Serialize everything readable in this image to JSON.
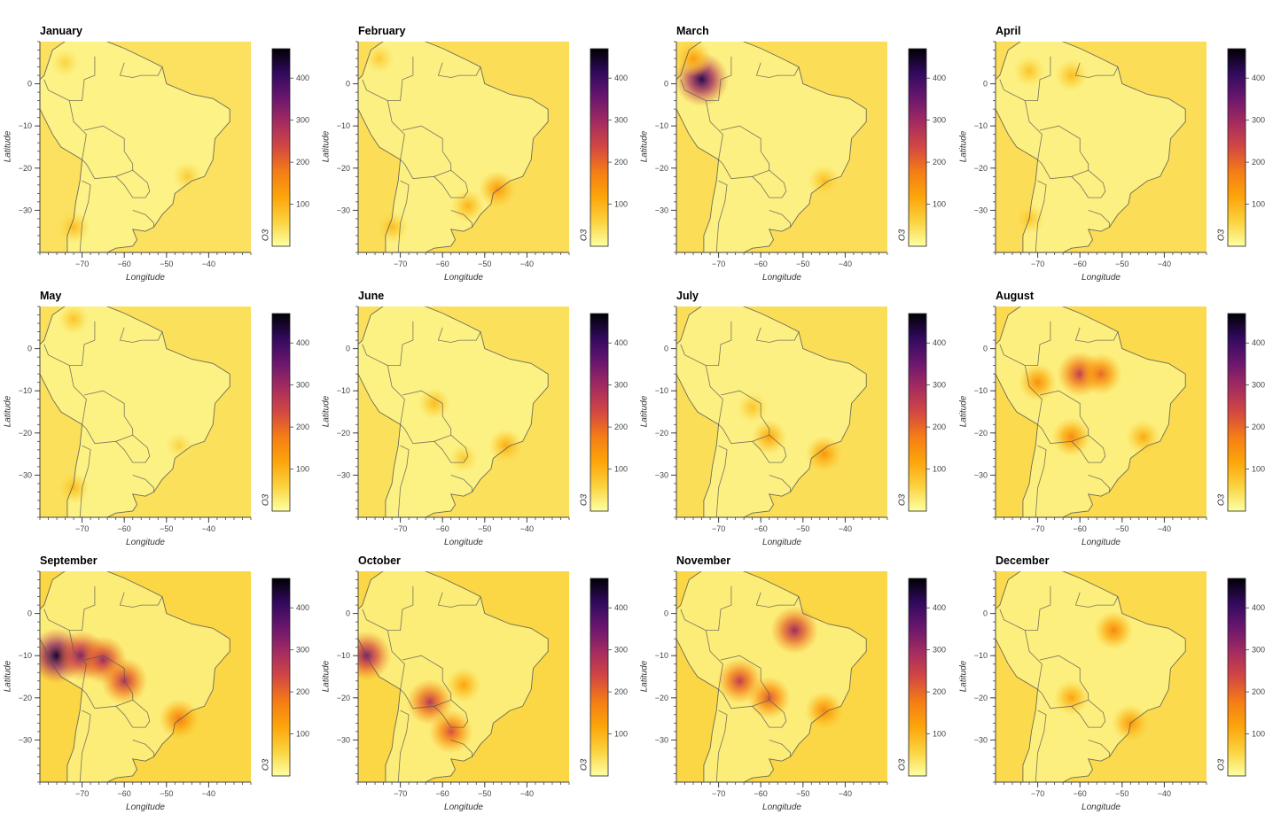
{
  "chart_data": {
    "type": "heatmap",
    "variable": "O3",
    "xlabel": "Longitude",
    "ylabel": "Latitude",
    "colorbar_label": "O3",
    "colormap": "inferno_r",
    "color_stops": [
      "#fcffa4",
      "#fbd33f",
      "#fca50a",
      "#f57d15",
      "#d44842",
      "#a52c60",
      "#6a176e",
      "#320a5e",
      "#000004"
    ],
    "xlim": [
      -80,
      -30
    ],
    "ylim": [
      -40,
      10
    ],
    "x_ticks": [
      -70,
      -60,
      -50,
      -40
    ],
    "y_ticks": [
      0,
      -10,
      -20,
      -30
    ],
    "clim": [
      0,
      470
    ],
    "colorbar_ticks": [
      100,
      200,
      300,
      400
    ],
    "panels": [
      {
        "month": "January",
        "base": 40,
        "hotspots": [
          {
            "lon": -45,
            "lat": -22,
            "value": 70
          },
          {
            "lon": -72,
            "lat": -34,
            "value": 90
          },
          {
            "lon": -74,
            "lat": 5,
            "value": 60
          }
        ]
      },
      {
        "month": "February",
        "base": 45,
        "hotspots": [
          {
            "lon": -47,
            "lat": -25,
            "value": 140
          },
          {
            "lon": -54,
            "lat": -29,
            "value": 100
          },
          {
            "lon": -75,
            "lat": 6,
            "value": 70
          },
          {
            "lon": -72,
            "lat": -34,
            "value": 90
          }
        ]
      },
      {
        "month": "March",
        "base": 45,
        "hotspots": [
          {
            "lon": -74,
            "lat": 1,
            "value": 420
          },
          {
            "lon": -76,
            "lat": 6,
            "value": 130
          },
          {
            "lon": -45,
            "lat": -23,
            "value": 90
          }
        ]
      },
      {
        "month": "April",
        "base": 45,
        "hotspots": [
          {
            "lon": -72,
            "lat": 3,
            "value": 80
          },
          {
            "lon": -62,
            "lat": 2,
            "value": 90
          },
          {
            "lon": -72,
            "lat": -32,
            "value": 80
          }
        ]
      },
      {
        "month": "May",
        "base": 42,
        "hotspots": [
          {
            "lon": -72,
            "lat": 7,
            "value": 80
          },
          {
            "lon": -72,
            "lat": -33,
            "value": 90
          },
          {
            "lon": -47,
            "lat": -23,
            "value": 60
          }
        ]
      },
      {
        "month": "June",
        "base": 42,
        "hotspots": [
          {
            "lon": -62,
            "lat": -13,
            "value": 90
          },
          {
            "lon": -45,
            "lat": -23,
            "value": 110
          },
          {
            "lon": -55,
            "lat": -26,
            "value": 70
          }
        ]
      },
      {
        "month": "July",
        "base": 44,
        "hotspots": [
          {
            "lon": -58,
            "lat": -21,
            "value": 120
          },
          {
            "lon": -45,
            "lat": -25,
            "value": 140
          },
          {
            "lon": -62,
            "lat": -14,
            "value": 80
          }
        ]
      },
      {
        "month": "August",
        "base": 50,
        "hotspots": [
          {
            "lon": -60,
            "lat": -6,
            "value": 260
          },
          {
            "lon": -55,
            "lat": -6,
            "value": 200
          },
          {
            "lon": -70,
            "lat": -8,
            "value": 150
          },
          {
            "lon": -62,
            "lat": -21,
            "value": 160
          },
          {
            "lon": -45,
            "lat": -21,
            "value": 110
          }
        ]
      },
      {
        "month": "September",
        "base": 55,
        "hotspots": [
          {
            "lon": -76,
            "lat": -10,
            "value": 440
          },
          {
            "lon": -70,
            "lat": -10,
            "value": 340
          },
          {
            "lon": -65,
            "lat": -11,
            "value": 300
          },
          {
            "lon": -60,
            "lat": -16,
            "value": 280
          },
          {
            "lon": -47,
            "lat": -25,
            "value": 180
          }
        ]
      },
      {
        "month": "October",
        "base": 55,
        "hotspots": [
          {
            "lon": -78,
            "lat": -10,
            "value": 330
          },
          {
            "lon": -63,
            "lat": -21,
            "value": 270
          },
          {
            "lon": -58,
            "lat": -28,
            "value": 230
          },
          {
            "lon": -55,
            "lat": -17,
            "value": 120
          }
        ]
      },
      {
        "month": "November",
        "base": 55,
        "hotspots": [
          {
            "lon": -52,
            "lat": -4,
            "value": 300
          },
          {
            "lon": -65,
            "lat": -16,
            "value": 260
          },
          {
            "lon": -58,
            "lat": -20,
            "value": 220
          },
          {
            "lon": -45,
            "lat": -23,
            "value": 160
          }
        ]
      },
      {
        "month": "December",
        "base": 50,
        "hotspots": [
          {
            "lon": -52,
            "lat": -4,
            "value": 160
          },
          {
            "lon": -48,
            "lat": -26,
            "value": 140
          },
          {
            "lon": -62,
            "lat": -20,
            "value": 120
          }
        ]
      }
    ]
  }
}
